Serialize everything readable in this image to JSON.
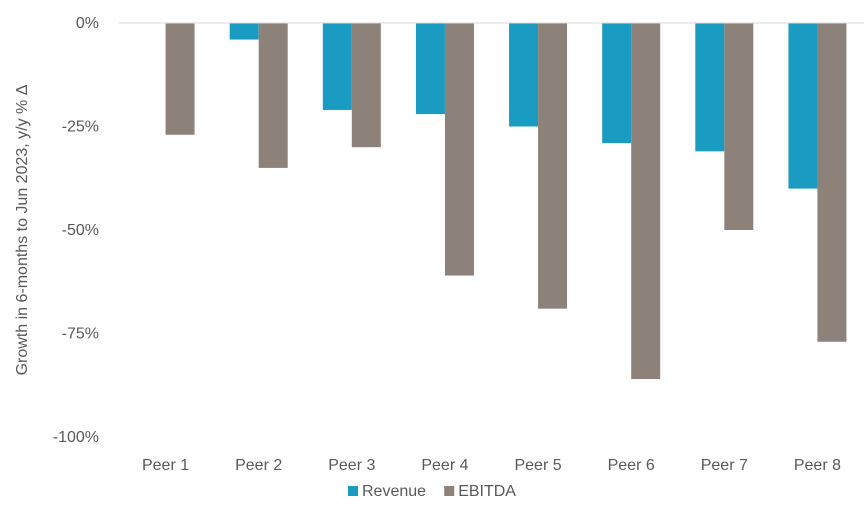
{
  "chart_data": {
    "type": "bar",
    "categories": [
      "Peer 1",
      "Peer 2",
      "Peer 3",
      "Peer 4",
      "Peer 5",
      "Peer 6",
      "Peer 7",
      "Peer 8"
    ],
    "series": [
      {
        "name": "Revenue",
        "color": "#1a9bc2",
        "values": [
          0,
          -4,
          -21,
          -22,
          -25,
          -29,
          -31,
          -40
        ]
      },
      {
        "name": "EBITDA",
        "color": "#8c8279",
        "values": [
          -27,
          -35,
          -30,
          -61,
          -69,
          -86,
          -50,
          -77
        ]
      }
    ],
    "ylabel": "Growth in 6-months to Jun 2023, y/y % Δ",
    "ylim": [
      -100,
      0
    ],
    "yticks": [
      0,
      -25,
      -50,
      -75,
      -100
    ],
    "ytick_labels": [
      "0%",
      "-25%",
      "-50%",
      "-75%",
      "-100%"
    ],
    "grid": false,
    "legend_position": "bottom"
  }
}
